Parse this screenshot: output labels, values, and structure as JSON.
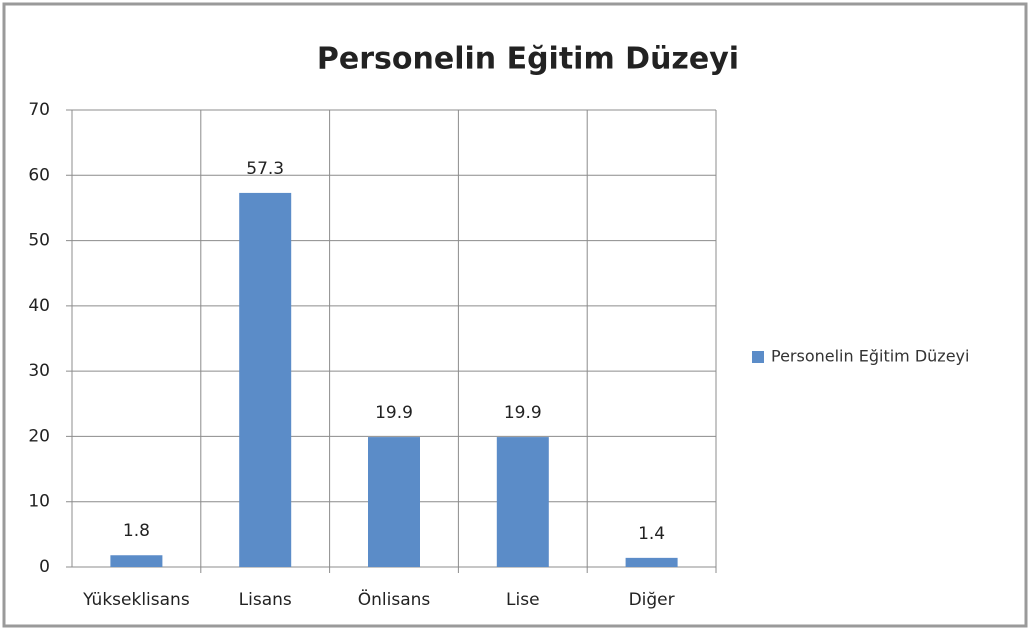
{
  "chart_data": {
    "type": "bar",
    "title": "Personelin Eğitim Düzeyi",
    "categories": [
      "Yükseklisans",
      "Lisans",
      "Önlisans",
      "Lise",
      "Diğer"
    ],
    "series": [
      {
        "name": "Personelin Eğitim Düzeyi",
        "color": "#5b8cc8",
        "values": [
          1.8,
          57.3,
          19.9,
          19.9,
          1.4
        ]
      }
    ],
    "ylim": [
      0,
      70
    ],
    "yticks": [
      0,
      10,
      20,
      30,
      40,
      50,
      60,
      70
    ],
    "grid": true,
    "legend": "right"
  }
}
